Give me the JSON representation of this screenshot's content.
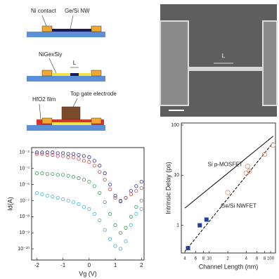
{
  "schematic": {
    "labels": [
      "Ni contact",
      "Ge/Si NW",
      "NiGexSiy",
      "L",
      "HfO2 film",
      "Top gate electrode"
    ]
  },
  "sem_image": {
    "label": "L"
  },
  "chart_data": [
    {
      "type": "scatter",
      "xlabel": "Vg (V)",
      "ylabel": "Id(A)",
      "ylog": true,
      "x": [
        -2,
        -1.8,
        -1.6,
        -1.4,
        -1.2,
        -1,
        -0.8,
        -0.6,
        -0.4,
        -0.2,
        0,
        0.2,
        0.4,
        0.6,
        0.8,
        1,
        1.2,
        1.4,
        1.6,
        1.8,
        2
      ],
      "xlim": [
        -2.2,
        2.1
      ],
      "xticks": [
        -2,
        -1,
        0,
        1,
        2
      ],
      "ylim": [
        2e-11,
        0.0002
      ],
      "yticks": [
        {
          "value": 0.0001,
          "label": "10⁻⁴"
        },
        {
          "value": 1e-05,
          "label": "10⁻⁵"
        },
        {
          "value": 1e-06,
          "label": "10⁻⁶"
        },
        {
          "value": 1e-07,
          "label": "10⁻⁷"
        },
        {
          "value": 1e-08,
          "label": "10⁻⁸"
        },
        {
          "value": 1e-09,
          "label": "10⁻⁹"
        },
        {
          "value": 1e-10,
          "label": "10⁻¹⁰"
        }
      ],
      "series": [
        {
          "color": "#2b2b8f",
          "values": [
            0.0001,
            0.0001,
            0.0001,
            0.0001,
            9e-05,
            9e-05,
            8e-05,
            8e-05,
            7e-05,
            6e-05,
            5e-05,
            3e-05,
            1.5e-05,
            5e-06,
            1e-06,
            2e-07,
            9e-08,
            1.5e-07,
            4e-07,
            8e-07,
            1.5e-06
          ]
        },
        {
          "color": "#c8464a",
          "values": [
            8e-05,
            8e-05,
            7e-05,
            7e-05,
            6e-05,
            6e-05,
            5e-05,
            5e-05,
            4e-05,
            3e-05,
            2.5e-05,
            1.5e-05,
            6e-06,
            2e-06,
            5e-07,
            1.5e-07,
            1e-07,
            1.5e-07,
            2.5e-07,
            4e-07,
            6e-07
          ]
        },
        {
          "color": "#3a9a5a",
          "values": [
            5e-06,
            5e-06,
            4.5e-06,
            4.5e-06,
            4e-06,
            4e-06,
            3.5e-06,
            3e-06,
            2.5e-06,
            2e-06,
            1.5e-06,
            8e-07,
            3e-07,
            8e-08,
            1.5e-08,
            3e-09,
            1e-09,
            2e-09,
            1e-08,
            4e-08,
            1e-07
          ]
        },
        {
          "color": "#3fb6d6",
          "values": [
            3e-07,
            2.5e-07,
            2e-07,
            1.8e-07,
            1.5e-07,
            1.2e-07,
            1e-07,
            8e-08,
            6e-08,
            4e-08,
            3e-08,
            1.5e-08,
            6e-09,
            1.5e-09,
            4e-10,
            1.5e-10,
            1e-10,
            3e-10,
            3e-09,
            1.5e-08,
            3e-08
          ]
        }
      ]
    },
    {
      "type": "scatter",
      "xlabel": "Channel Length (nm)",
      "ylabel": "Intrinsic Delay (ps)",
      "xlog": true,
      "ylog": true,
      "xlim": [
        3.5,
        120
      ],
      "xticks": [
        4,
        6,
        8,
        10,
        {
          "value": 20,
          "label": "2"
        },
        {
          "value": 40,
          "label": "4"
        },
        {
          "value": 60,
          "label": "6"
        },
        {
          "value": 80,
          "label": "8"
        },
        100
      ],
      "ylim": [
        0.28,
        110
      ],
      "yticks": [
        1,
        10,
        100
      ],
      "series": [
        {
          "name": "Si p-MOSFET",
          "mode": "line",
          "dash": false,
          "color": "#000000",
          "x": [
            4,
            110
          ],
          "values": [
            2.2,
            60
          ]
        },
        {
          "name": "Ge/Si NWFET",
          "mode": "line",
          "dash": true,
          "color": "#000000",
          "x": [
            4,
            110
          ],
          "values": [
            0.3,
            45
          ]
        },
        {
          "mode": "markers",
          "marker": "square",
          "color": "#1f3f9f",
          "x": [
            4.5,
            7,
            9
          ],
          "values": [
            0.35,
            1.0,
            1.3
          ]
        },
        {
          "mode": "markers",
          "marker": "circle",
          "color": "#e8845a",
          "x": [
            20,
            40,
            42,
            45,
            80,
            110
          ],
          "values": [
            4.5,
            11,
            15,
            12,
            26,
            40
          ]
        }
      ]
    }
  ]
}
